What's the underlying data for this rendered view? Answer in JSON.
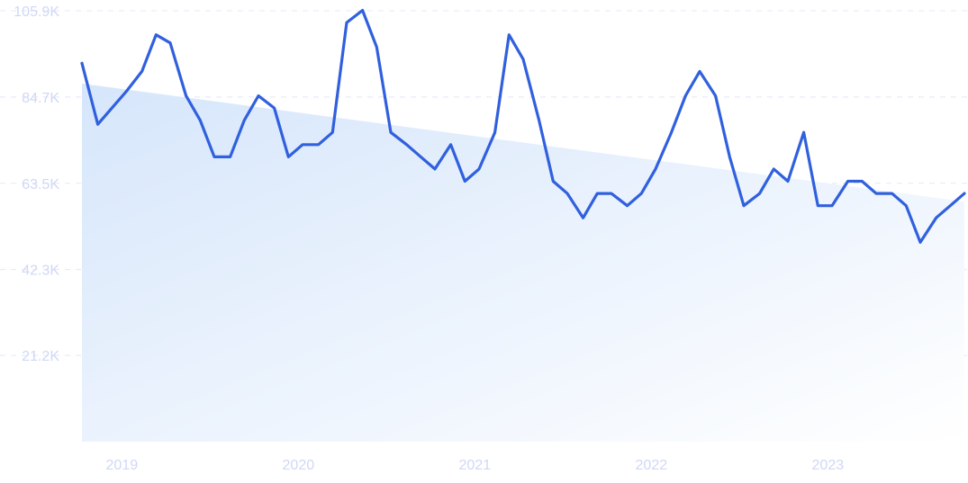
{
  "chart_data": {
    "type": "line",
    "title": "",
    "xlabel": "",
    "ylabel": "",
    "ylim": [
      0,
      105.9
    ],
    "y_ticks": [
      "105.9K",
      "84.7K",
      "63.5K",
      "42.3K",
      "21.2K"
    ],
    "y_tick_values": [
      105.9,
      84.7,
      63.5,
      42.3,
      21.2
    ],
    "x_ticks": [
      "2019",
      "2020",
      "2021",
      "2022",
      "2023"
    ],
    "x_tick_values": [
      2019.0,
      2020.0,
      2021.0,
      2022.0,
      2023.0
    ],
    "grid": true,
    "colors": {
      "line": "#3060dd",
      "fill_start": "#d6e6fb",
      "fill_end": "#ffffff",
      "grid": "#e3e8f5",
      "tick": "#cfd8f6"
    },
    "series": [
      {
        "values": [
          [
            2018.83,
            93
          ],
          [
            2018.92,
            78
          ],
          [
            2019.0,
            82
          ],
          [
            2019.08,
            86
          ],
          [
            2019.17,
            91
          ],
          [
            2019.25,
            100
          ],
          [
            2019.33,
            98
          ],
          [
            2019.42,
            85
          ],
          [
            2019.5,
            79
          ],
          [
            2019.58,
            70
          ],
          [
            2019.67,
            70
          ],
          [
            2019.75,
            79
          ],
          [
            2019.83,
            85
          ],
          [
            2019.92,
            82
          ],
          [
            2020.0,
            70
          ],
          [
            2020.08,
            73
          ],
          [
            2020.17,
            73
          ],
          [
            2020.25,
            76
          ],
          [
            2020.33,
            103
          ],
          [
            2020.42,
            106
          ],
          [
            2020.5,
            97
          ],
          [
            2020.58,
            76
          ],
          [
            2020.67,
            73
          ],
          [
            2020.75,
            70
          ],
          [
            2020.83,
            67
          ],
          [
            2020.92,
            73
          ],
          [
            2021.0,
            64
          ],
          [
            2021.08,
            67
          ],
          [
            2021.17,
            76
          ],
          [
            2021.25,
            100
          ],
          [
            2021.33,
            94
          ],
          [
            2021.42,
            79
          ],
          [
            2021.5,
            64
          ],
          [
            2021.58,
            61
          ],
          [
            2021.67,
            55
          ],
          [
            2021.75,
            61
          ],
          [
            2021.83,
            61
          ],
          [
            2021.92,
            58
          ],
          [
            2022.0,
            61
          ],
          [
            2022.08,
            67
          ],
          [
            2022.17,
            76
          ],
          [
            2022.25,
            85
          ],
          [
            2022.33,
            91
          ],
          [
            2022.42,
            85
          ],
          [
            2022.5,
            70
          ],
          [
            2022.58,
            58
          ],
          [
            2022.67,
            61
          ],
          [
            2022.75,
            67
          ],
          [
            2022.83,
            64
          ],
          [
            2022.92,
            76
          ],
          [
            2023.0,
            58
          ],
          [
            2023.08,
            58
          ],
          [
            2023.17,
            64
          ],
          [
            2023.25,
            64
          ],
          [
            2023.33,
            61
          ],
          [
            2023.42,
            61
          ],
          [
            2023.5,
            58
          ],
          [
            2023.58,
            49
          ],
          [
            2023.67,
            55
          ],
          [
            2023.75,
            58
          ],
          [
            2023.83,
            61
          ]
        ]
      }
    ],
    "trend": [
      [
        2018.83,
        88
      ],
      [
        2023.83,
        59
      ]
    ]
  }
}
